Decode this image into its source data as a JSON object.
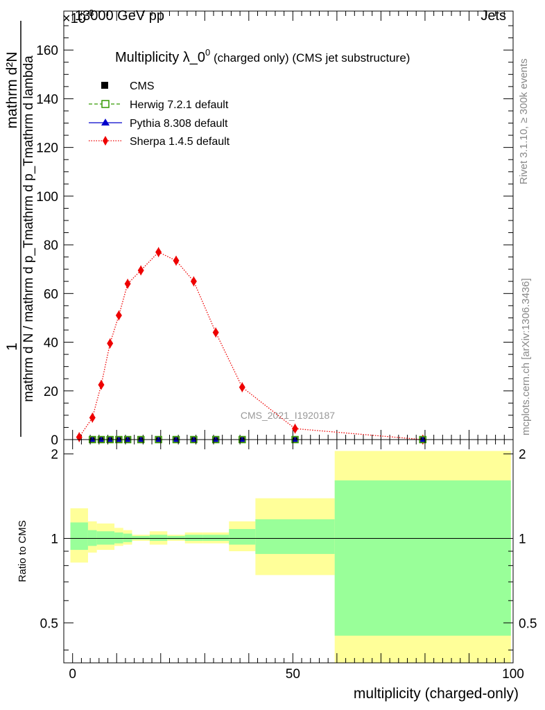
{
  "header": {
    "left": "13000 GeV pp",
    "right": "Jets",
    "exponent": "×10",
    "exponent_power": "-3"
  },
  "side_labels": {
    "rivet": "Rivet 3.1.10, ≥ 300k events",
    "mcplots": "mcplots.cern.ch [arXiv:1306.3436]"
  },
  "watermark": "CMS_2021_I1920187",
  "colors": {
    "sherpa": "#ee0000",
    "herwig": "#339900",
    "pythia": "#0000cc",
    "cms": "#000000",
    "band_outer": "#ffff99",
    "band_inner": "#99ff99"
  },
  "chart_data": [
    {
      "type": "scatter",
      "title_main": "Multiplicity λ_0",
      "title_sup": "0",
      "title_sub": " (charged only) (CMS jet substructure)",
      "ylabel_top": "1",
      "ylabel_num": "mathrm d²N",
      "ylabel_den": "mathrm d N / mathrm d p_Tmathrm d p_Tmathrm d lambda",
      "ylim": [
        0,
        176
      ],
      "yticks": [
        0,
        20,
        40,
        60,
        80,
        100,
        120,
        140,
        160
      ],
      "xlim": [
        -2,
        100
      ],
      "legend": [
        {
          "label": "CMS",
          "marker": "square"
        },
        {
          "label": "Herwig 7.2.1 default",
          "marker": "open-square"
        },
        {
          "label": "Pythia 8.308 default",
          "marker": "triangle"
        },
        {
          "label": "Sherpa 1.4.5 default",
          "marker": "diamond"
        }
      ],
      "series": [
        {
          "name": "Sherpa 1.4.5 default",
          "x": [
            1.5,
            4.5,
            6.5,
            8.5,
            10.5,
            12.5,
            15.5,
            19.5,
            23.5,
            27.5,
            32.5,
            38.5,
            50.5,
            79.5
          ],
          "y": [
            1.0,
            9.0,
            22.5,
            39.5,
            51.0,
            64.0,
            69.5,
            77.0,
            73.5,
            65.0,
            44.0,
            21.5,
            4.5,
            0.0
          ]
        },
        {
          "name": "CMS",
          "x": [
            4.5,
            6.5,
            8.5,
            10.5,
            12.5,
            15.5,
            19.5,
            23.5,
            27.5,
            32.5,
            38.5,
            50.5,
            79.5
          ],
          "y": [
            0,
            0,
            0,
            0,
            0,
            0,
            0,
            0,
            0,
            0,
            0,
            0,
            0
          ]
        }
      ]
    },
    {
      "type": "area",
      "ylabel": "Ratio to CMS",
      "xlabel": "multiplicity (charged-only)",
      "ylim": [
        0.36,
        2.25
      ],
      "yticks": [
        0.5,
        1,
        2
      ],
      "xticks": [
        0,
        50,
        100
      ],
      "xlim": [
        -2,
        100
      ],
      "reference_line": 1,
      "bins": [
        {
          "lo": -0.5,
          "hi": 3.5,
          "inner": [
            0.91,
            1.14
          ],
          "outer": [
            0.82,
            1.28
          ]
        },
        {
          "lo": 3.5,
          "hi": 5.5,
          "inner": [
            0.94,
            1.07
          ],
          "outer": [
            0.89,
            1.15
          ]
        },
        {
          "lo": 5.5,
          "hi": 9.5,
          "inner": [
            0.95,
            1.06
          ],
          "outer": [
            0.91,
            1.13
          ]
        },
        {
          "lo": 9.5,
          "hi": 11.5,
          "inner": [
            0.96,
            1.05
          ],
          "outer": [
            0.94,
            1.09
          ]
        },
        {
          "lo": 11.5,
          "hi": 13.5,
          "inner": [
            0.97,
            1.04
          ],
          "outer": [
            0.95,
            1.07
          ]
        },
        {
          "lo": 13.5,
          "hi": 17.5,
          "inner": [
            0.99,
            1.02
          ],
          "outer": [
            0.98,
            1.03
          ]
        },
        {
          "lo": 17.5,
          "hi": 21.5,
          "inner": [
            0.98,
            1.03
          ],
          "outer": [
            0.95,
            1.06
          ]
        },
        {
          "lo": 21.5,
          "hi": 25.5,
          "inner": [
            0.99,
            1.02
          ],
          "outer": [
            0.98,
            1.03
          ]
        },
        {
          "lo": 25.5,
          "hi": 29.5,
          "inner": [
            0.98,
            1.03
          ],
          "outer": [
            0.96,
            1.05
          ]
        },
        {
          "lo": 29.5,
          "hi": 35.5,
          "inner": [
            0.98,
            1.03
          ],
          "outer": [
            0.96,
            1.05
          ]
        },
        {
          "lo": 35.5,
          "hi": 41.5,
          "inner": [
            0.95,
            1.08
          ],
          "outer": [
            0.9,
            1.15
          ]
        },
        {
          "lo": 41.5,
          "hi": 59.5,
          "inner": [
            0.88,
            1.17
          ],
          "outer": [
            0.74,
            1.39
          ]
        },
        {
          "lo": 59.5,
          "hi": 99.5,
          "inner": [
            0.45,
            1.61
          ],
          "outer": [
            0.36,
            2.05
          ]
        }
      ]
    }
  ]
}
